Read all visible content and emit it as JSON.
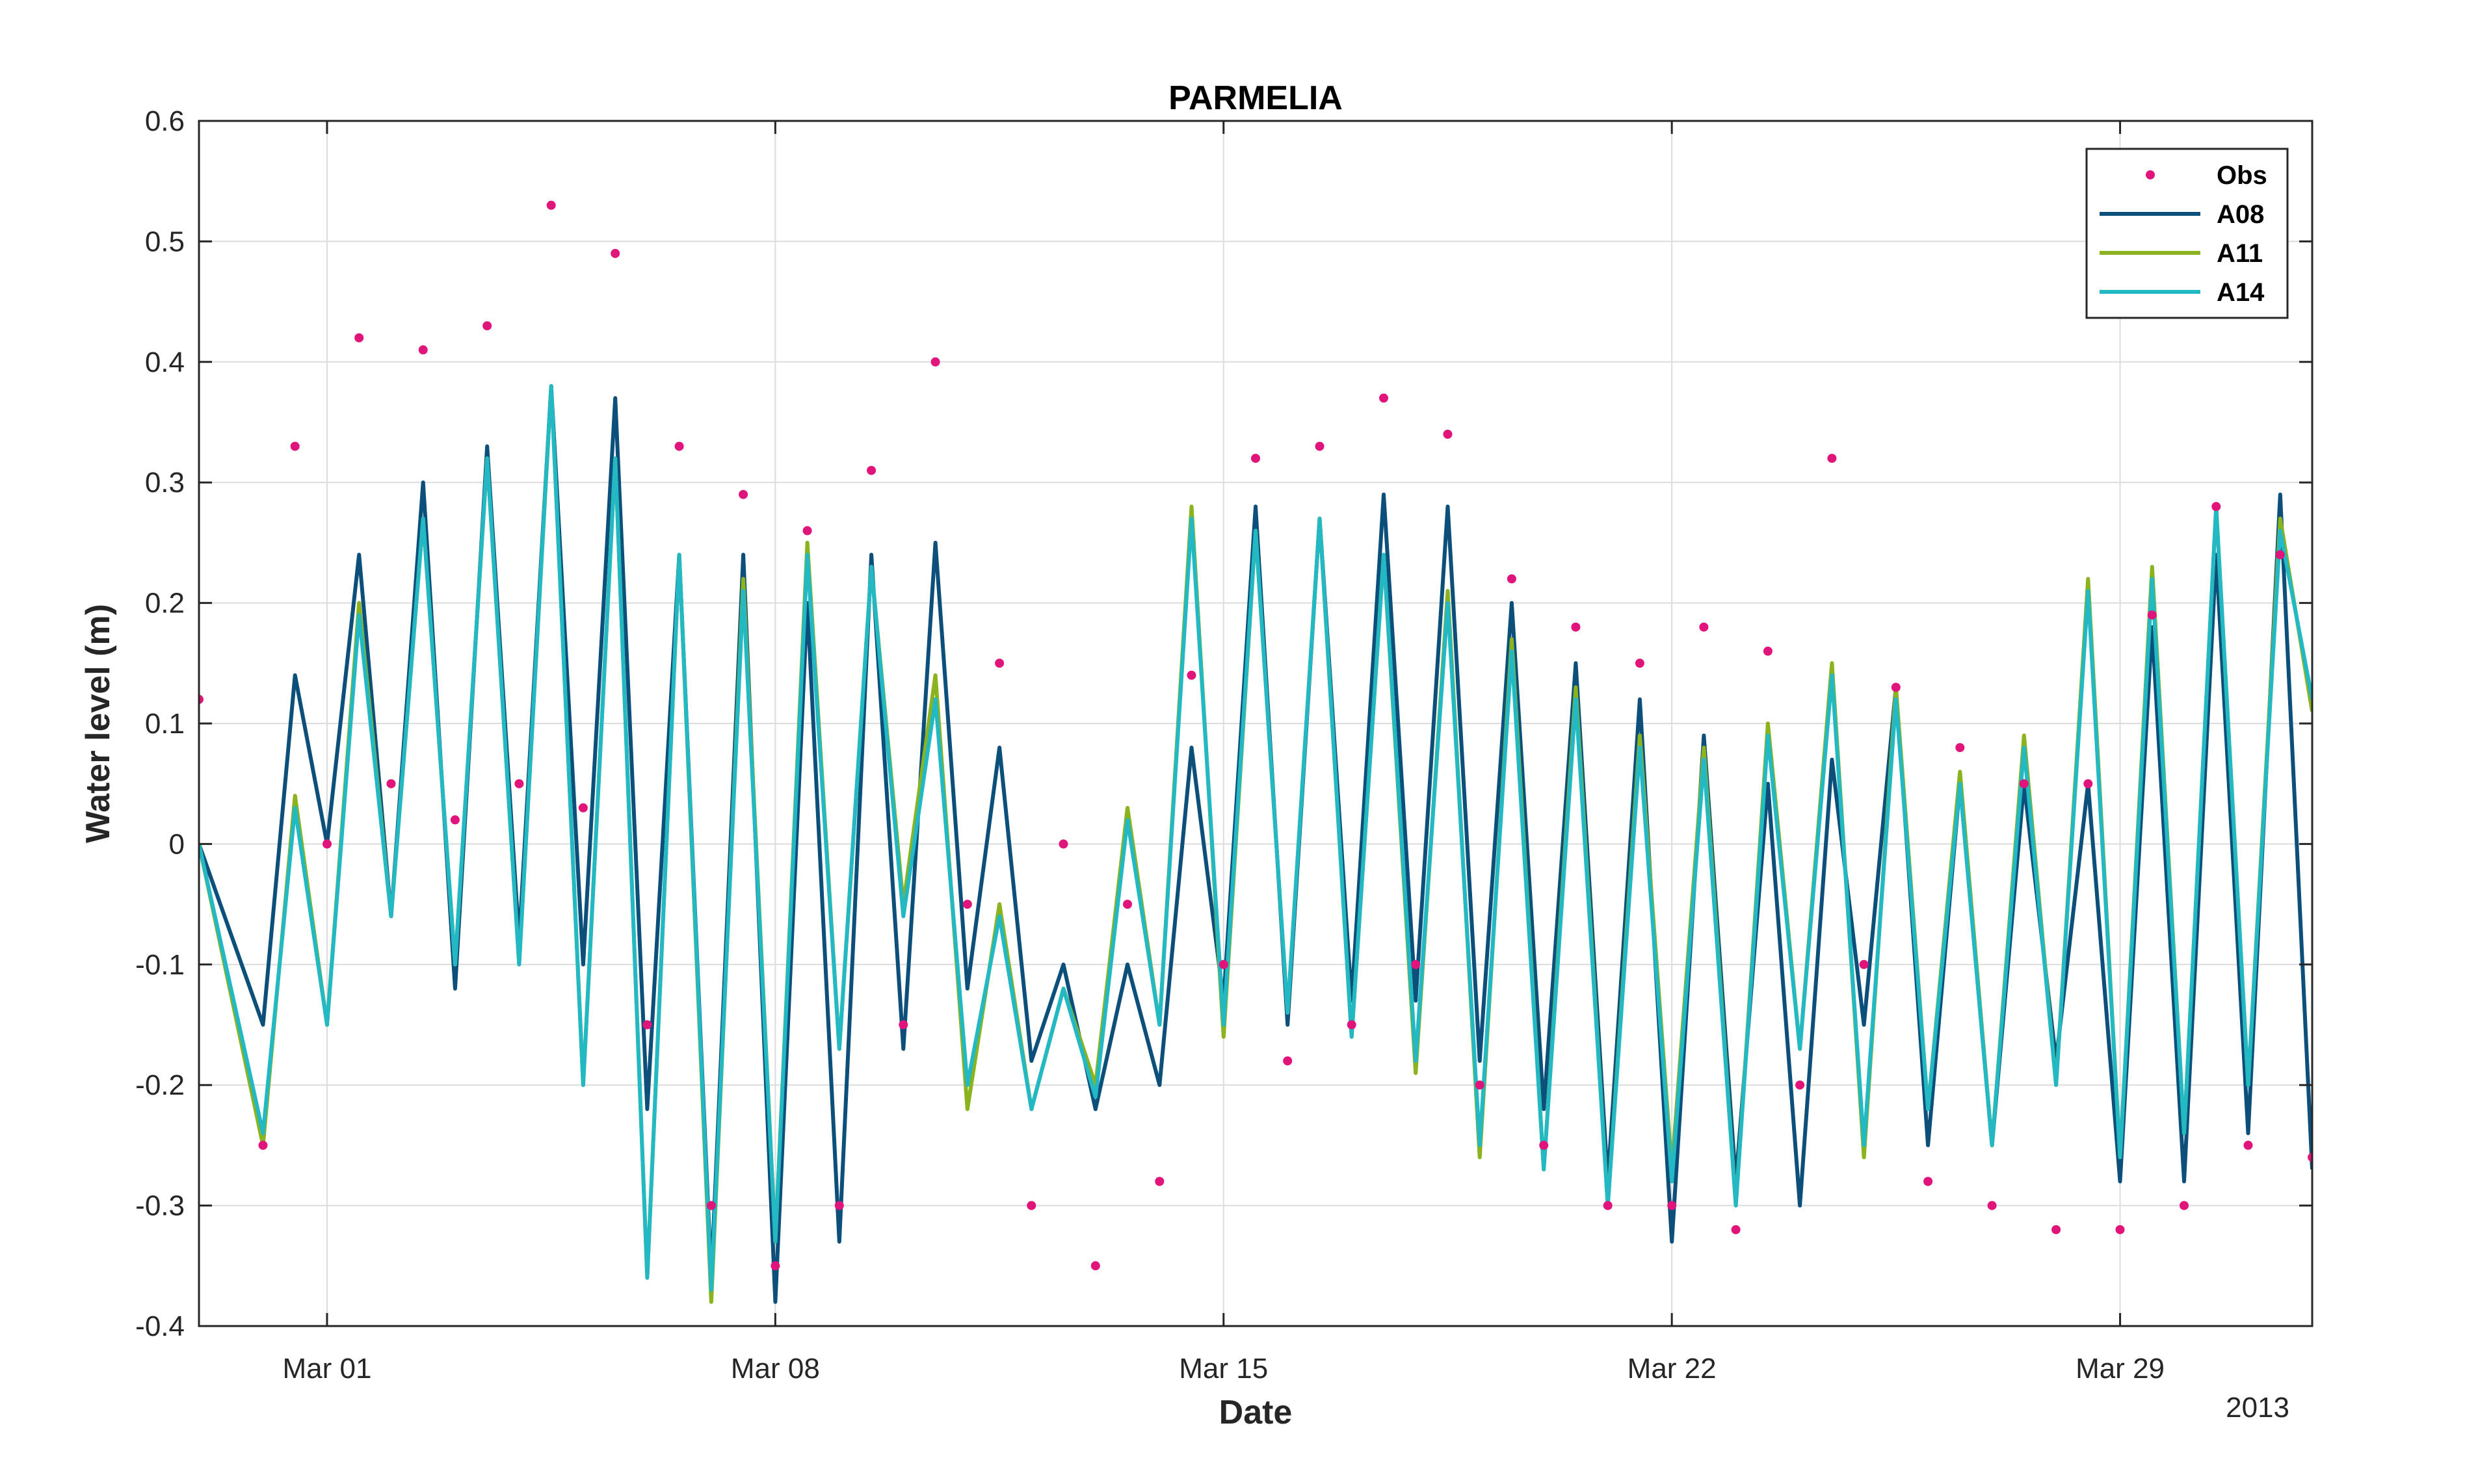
{
  "chart_data": {
    "type": "line",
    "title": "PARMELIA",
    "xlabel": "Date",
    "ylabel": "Water level (m)",
    "x_secondary_label": "2013",
    "xlim": [
      "2013-02-27",
      "2013-04-01"
    ],
    "ylim": [
      -0.4,
      0.6
    ],
    "grid": true,
    "legend_position": "top-right",
    "x_ticks": [
      {
        "date": "2013-03-01",
        "label": "Mar 01"
      },
      {
        "date": "2013-03-08",
        "label": "Mar 08"
      },
      {
        "date": "2013-03-15",
        "label": "Mar 15"
      },
      {
        "date": "2013-03-22",
        "label": "Mar 22"
      },
      {
        "date": "2013-03-29",
        "label": "Mar 29"
      }
    ],
    "y_ticks": [
      {
        "value": -0.4,
        "label": "-0.4"
      },
      {
        "value": -0.3,
        "label": "-0.3"
      },
      {
        "value": -0.2,
        "label": "-0.2"
      },
      {
        "value": -0.1,
        "label": "-0.1"
      },
      {
        "value": 0,
        "label": "0"
      },
      {
        "value": 0.1,
        "label": "0.1"
      },
      {
        "value": 0.2,
        "label": "0.2"
      },
      {
        "value": 0.3,
        "label": "0.3"
      },
      {
        "value": 0.4,
        "label": "0.4"
      },
      {
        "value": 0.5,
        "label": "0.5"
      },
      {
        "value": 0.6,
        "label": "0.6"
      }
    ],
    "series": [
      {
        "name": "Obs",
        "style": "markers",
        "color": "#e0147a",
        "x": [
          "2013-02-27",
          "2013-02-28",
          "2013-02-28 12:00",
          "2013-03-01",
          "2013-03-01 12:00",
          "2013-03-02",
          "2013-03-02 12:00",
          "2013-03-03",
          "2013-03-03 12:00",
          "2013-03-04",
          "2013-03-04 12:00",
          "2013-03-05",
          "2013-03-05 12:00",
          "2013-03-06",
          "2013-03-06 12:00",
          "2013-03-07",
          "2013-03-07 12:00",
          "2013-03-08",
          "2013-03-08 12:00",
          "2013-03-09",
          "2013-03-09 12:00",
          "2013-03-10",
          "2013-03-10 12:00",
          "2013-03-11",
          "2013-03-11 12:00",
          "2013-03-12",
          "2013-03-12 12:00",
          "2013-03-13",
          "2013-03-13 12:00",
          "2013-03-14",
          "2013-03-14 12:00",
          "2013-03-15",
          "2013-03-15 12:00",
          "2013-03-16",
          "2013-03-16 12:00",
          "2013-03-17",
          "2013-03-17 12:00",
          "2013-03-18",
          "2013-03-18 12:00",
          "2013-03-19",
          "2013-03-19 12:00",
          "2013-03-20",
          "2013-03-20 12:00",
          "2013-03-21",
          "2013-03-21 12:00",
          "2013-03-22",
          "2013-03-22 12:00",
          "2013-03-23",
          "2013-03-23 12:00",
          "2013-03-24",
          "2013-03-24 12:00",
          "2013-03-25",
          "2013-03-25 12:00",
          "2013-03-26",
          "2013-03-26 12:00",
          "2013-03-27",
          "2013-03-27 12:00",
          "2013-03-28",
          "2013-03-28 12:00",
          "2013-03-29",
          "2013-03-29 12:00",
          "2013-03-30",
          "2013-03-30 12:00",
          "2013-03-31",
          "2013-03-31 12:00",
          "2013-04-01"
        ],
        "values": [
          0.12,
          -0.25,
          0.33,
          0.0,
          0.42,
          0.05,
          0.41,
          0.02,
          0.43,
          0.05,
          0.53,
          0.03,
          0.49,
          -0.15,
          0.33,
          -0.3,
          0.29,
          -0.35,
          0.26,
          -0.3,
          0.31,
          -0.15,
          0.4,
          -0.05,
          0.15,
          -0.3,
          0.0,
          -0.35,
          -0.05,
          -0.28,
          0.14,
          -0.1,
          0.32,
          -0.18,
          0.33,
          -0.15,
          0.37,
          -0.1,
          0.34,
          -0.2,
          0.22,
          -0.25,
          0.18,
          -0.3,
          0.15,
          -0.3,
          0.18,
          -0.32,
          0.16,
          -0.2,
          0.32,
          -0.1,
          0.13,
          -0.28,
          0.08,
          -0.3,
          0.05,
          -0.32,
          0.05,
          -0.32,
          0.19,
          -0.3,
          0.28,
          -0.25,
          0.24,
          -0.26
        ]
      },
      {
        "name": "A08",
        "style": "line",
        "color": "#0c4f7a",
        "x": [
          "2013-02-27",
          "2013-02-28",
          "2013-02-28 12:00",
          "2013-03-01",
          "2013-03-01 12:00",
          "2013-03-02",
          "2013-03-02 12:00",
          "2013-03-03",
          "2013-03-03 12:00",
          "2013-03-04",
          "2013-03-04 12:00",
          "2013-03-05",
          "2013-03-05 12:00",
          "2013-03-06",
          "2013-03-06 12:00",
          "2013-03-07",
          "2013-03-07 12:00",
          "2013-03-08",
          "2013-03-08 12:00",
          "2013-03-09",
          "2013-03-09 12:00",
          "2013-03-10",
          "2013-03-10 12:00",
          "2013-03-11",
          "2013-03-11 12:00",
          "2013-03-12",
          "2013-03-12 12:00",
          "2013-03-13",
          "2013-03-13 12:00",
          "2013-03-14",
          "2013-03-14 12:00",
          "2013-03-15",
          "2013-03-15 12:00",
          "2013-03-16",
          "2013-03-16 12:00",
          "2013-03-17",
          "2013-03-17 12:00",
          "2013-03-18",
          "2013-03-18 12:00",
          "2013-03-19",
          "2013-03-19 12:00",
          "2013-03-20",
          "2013-03-20 12:00",
          "2013-03-21",
          "2013-03-21 12:00",
          "2013-03-22",
          "2013-03-22 12:00",
          "2013-03-23",
          "2013-03-23 12:00",
          "2013-03-24",
          "2013-03-24 12:00",
          "2013-03-25",
          "2013-03-25 12:00",
          "2013-03-26",
          "2013-03-26 12:00",
          "2013-03-27",
          "2013-03-27 12:00",
          "2013-03-28",
          "2013-03-28 12:00",
          "2013-03-29",
          "2013-03-29 12:00",
          "2013-03-30",
          "2013-03-30 12:00",
          "2013-03-31",
          "2013-03-31 12:00",
          "2013-04-01"
        ],
        "values": [
          0.0,
          -0.15,
          0.14,
          0.0,
          0.24,
          -0.06,
          0.3,
          -0.12,
          0.33,
          -0.08,
          0.38,
          -0.1,
          0.37,
          -0.22,
          0.24,
          -0.36,
          0.24,
          -0.38,
          0.2,
          -0.33,
          0.24,
          -0.17,
          0.25,
          -0.12,
          0.08,
          -0.18,
          -0.1,
          -0.22,
          -0.1,
          -0.2,
          0.08,
          -0.13,
          0.28,
          -0.15,
          0.27,
          -0.13,
          0.29,
          -0.13,
          0.28,
          -0.18,
          0.2,
          -0.22,
          0.15,
          -0.28,
          0.12,
          -0.33,
          0.09,
          -0.28,
          0.05,
          -0.3,
          0.07,
          -0.15,
          0.13,
          -0.25,
          0.05,
          -0.25,
          0.05,
          -0.18,
          0.05,
          -0.28,
          0.18,
          -0.28,
          0.24,
          -0.24,
          0.29,
          -0.27
        ]
      },
      {
        "name": "A11",
        "style": "line",
        "color": "#8ab31e",
        "x": [
          "2013-02-27",
          "2013-02-28",
          "2013-02-28 12:00",
          "2013-03-01",
          "2013-03-01 12:00",
          "2013-03-02",
          "2013-03-02 12:00",
          "2013-03-03",
          "2013-03-03 12:00",
          "2013-03-04",
          "2013-03-04 12:00",
          "2013-03-05",
          "2013-03-05 12:00",
          "2013-03-06",
          "2013-03-06 12:00",
          "2013-03-07",
          "2013-03-07 12:00",
          "2013-03-08",
          "2013-03-08 12:00",
          "2013-03-09",
          "2013-03-09 12:00",
          "2013-03-10",
          "2013-03-10 12:00",
          "2013-03-11",
          "2013-03-11 12:00",
          "2013-03-12",
          "2013-03-12 12:00",
          "2013-03-13",
          "2013-03-13 12:00",
          "2013-03-14",
          "2013-03-14 12:00",
          "2013-03-15",
          "2013-03-15 12:00",
          "2013-03-16",
          "2013-03-16 12:00",
          "2013-03-17",
          "2013-03-17 12:00",
          "2013-03-18",
          "2013-03-18 12:00",
          "2013-03-19",
          "2013-03-19 12:00",
          "2013-03-20",
          "2013-03-20 12:00",
          "2013-03-21",
          "2013-03-21 12:00",
          "2013-03-22",
          "2013-03-22 12:00",
          "2013-03-23",
          "2013-03-23 12:00",
          "2013-03-24",
          "2013-03-24 12:00",
          "2013-03-25",
          "2013-03-25 12:00",
          "2013-03-26",
          "2013-03-26 12:00",
          "2013-03-27",
          "2013-03-27 12:00",
          "2013-03-28",
          "2013-03-28 12:00",
          "2013-03-29",
          "2013-03-29 12:00",
          "2013-03-30",
          "2013-03-30 12:00",
          "2013-03-31",
          "2013-03-31 12:00",
          "2013-04-01"
        ],
        "values": [
          0.0,
          -0.25,
          0.04,
          -0.15,
          0.2,
          -0.06,
          0.27,
          -0.1,
          0.32,
          -0.1,
          0.38,
          -0.2,
          0.32,
          -0.36,
          0.24,
          -0.38,
          0.22,
          -0.33,
          0.25,
          -0.17,
          0.23,
          -0.05,
          0.14,
          -0.22,
          -0.05,
          -0.22,
          -0.12,
          -0.2,
          0.03,
          -0.15,
          0.28,
          -0.16,
          0.26,
          -0.14,
          0.27,
          -0.16,
          0.24,
          -0.19,
          0.21,
          -0.26,
          0.17,
          -0.27,
          0.13,
          -0.3,
          0.09,
          -0.27,
          0.08,
          -0.3,
          0.1,
          -0.17,
          0.15,
          -0.26,
          0.13,
          -0.22,
          0.06,
          -0.25,
          0.09,
          -0.2,
          0.22,
          -0.26,
          0.23,
          -0.24,
          0.28,
          -0.2,
          0.27,
          0.11
        ]
      },
      {
        "name": "A14",
        "style": "line",
        "color": "#22b8c4",
        "x": [
          "2013-02-27",
          "2013-02-28",
          "2013-02-28 12:00",
          "2013-03-01",
          "2013-03-01 12:00",
          "2013-03-02",
          "2013-03-02 12:00",
          "2013-03-03",
          "2013-03-03 12:00",
          "2013-03-04",
          "2013-03-04 12:00",
          "2013-03-05",
          "2013-03-05 12:00",
          "2013-03-06",
          "2013-03-06 12:00",
          "2013-03-07",
          "2013-03-07 12:00",
          "2013-03-08",
          "2013-03-08 12:00",
          "2013-03-09",
          "2013-03-09 12:00",
          "2013-03-10",
          "2013-03-10 12:00",
          "2013-03-11",
          "2013-03-11 12:00",
          "2013-03-12",
          "2013-03-12 12:00",
          "2013-03-13",
          "2013-03-13 12:00",
          "2013-03-14",
          "2013-03-14 12:00",
          "2013-03-15",
          "2013-03-15 12:00",
          "2013-03-16",
          "2013-03-16 12:00",
          "2013-03-17",
          "2013-03-17 12:00",
          "2013-03-18",
          "2013-03-18 12:00",
          "2013-03-19",
          "2013-03-19 12:00",
          "2013-03-20",
          "2013-03-20 12:00",
          "2013-03-21",
          "2013-03-21 12:00",
          "2013-03-22",
          "2013-03-22 12:00",
          "2013-03-23",
          "2013-03-23 12:00",
          "2013-03-24",
          "2013-03-24 12:00",
          "2013-03-25",
          "2013-03-25 12:00",
          "2013-03-26",
          "2013-03-26 12:00",
          "2013-03-27",
          "2013-03-27 12:00",
          "2013-03-28",
          "2013-03-28 12:00",
          "2013-03-29",
          "2013-03-29 12:00",
          "2013-03-30",
          "2013-03-30 12:00",
          "2013-03-31",
          "2013-03-31 12:00",
          "2013-04-01"
        ],
        "values": [
          0.0,
          -0.24,
          0.03,
          -0.15,
          0.19,
          -0.06,
          0.27,
          -0.1,
          0.32,
          -0.1,
          0.38,
          -0.2,
          0.32,
          -0.36,
          0.24,
          -0.37,
          0.21,
          -0.33,
          0.24,
          -0.17,
          0.23,
          -0.06,
          0.12,
          -0.2,
          -0.06,
          -0.22,
          -0.12,
          -0.21,
          0.02,
          -0.15,
          0.27,
          -0.15,
          0.26,
          -0.14,
          0.27,
          -0.16,
          0.24,
          -0.18,
          0.2,
          -0.25,
          0.16,
          -0.27,
          0.12,
          -0.3,
          0.08,
          -0.28,
          0.07,
          -0.3,
          0.09,
          -0.17,
          0.14,
          -0.25,
          0.12,
          -0.22,
          0.05,
          -0.25,
          0.08,
          -0.2,
          0.21,
          -0.26,
          0.22,
          -0.24,
          0.28,
          -0.2,
          0.26,
          0.12
        ]
      }
    ]
  }
}
